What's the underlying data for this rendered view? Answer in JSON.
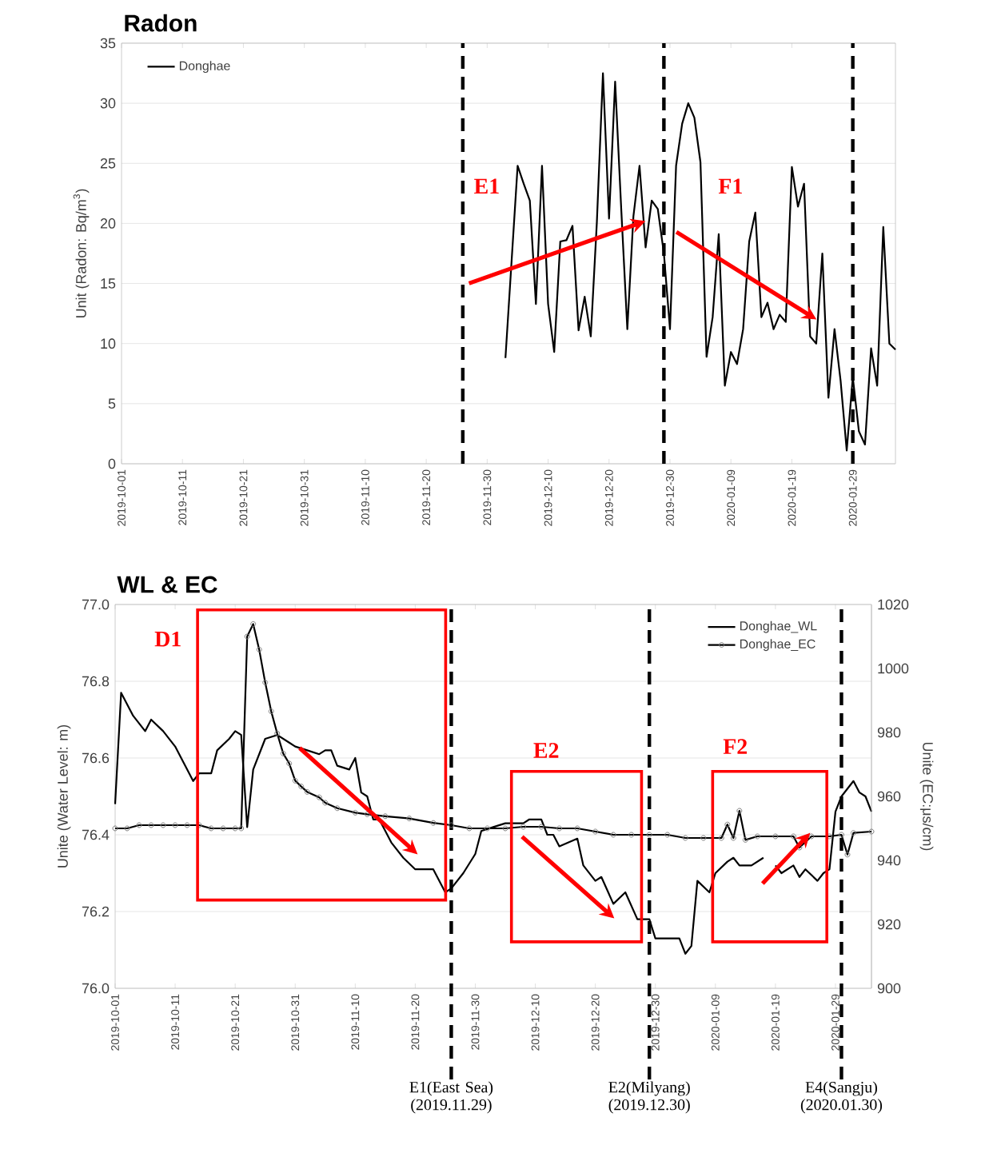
{
  "chart_data": [
    {
      "type": "line",
      "title": "Radon",
      "ylabel": "Unit (Radon: Bq/m$^{3}$)",
      "xlim": [
        "2019-10-01",
        "2020-02-05"
      ],
      "xticks": [
        "2019-10-01",
        "2019-10-11",
        "2019-10-21",
        "2019-10-31",
        "2019-11-10",
        "2019-11-20",
        "2019-11-30",
        "2019-12-10",
        "2019-12-20",
        "2019-12-30",
        "2020-01-09",
        "2020-01-19",
        "2020-01-29"
      ],
      "ylim": [
        0,
        35
      ],
      "yticks": [
        0,
        5,
        10,
        15,
        20,
        25,
        30,
        35
      ],
      "grid": "y",
      "legend": "top left",
      "series": [
        {
          "name": "Donghae",
          "color": "#000000",
          "x": [
            "2019-12-03",
            "2019-12-05",
            "2019-12-06",
            "2019-12-07",
            "2019-12-08",
            "2019-12-09",
            "2019-12-10",
            "2019-12-11",
            "2019-12-12",
            "2019-12-13",
            "2019-12-14",
            "2019-12-15",
            "2019-12-16",
            "2019-12-17",
            "2019-12-18",
            "2019-12-19",
            "2019-12-20",
            "2019-12-21",
            "2019-12-22",
            "2019-12-23",
            "2019-12-24",
            "2019-12-25",
            "2019-12-26",
            "2019-12-27",
            "2019-12-28",
            "2019-12-29",
            "2019-12-30",
            "2019-12-31",
            "2020-01-01",
            "2020-01-02",
            "2020-01-03",
            "2020-01-04",
            "2020-01-05",
            "2020-01-06",
            "2020-01-07",
            "2020-01-08",
            "2020-01-09",
            "2020-01-10",
            "2020-01-11",
            "2020-01-12",
            "2020-01-13",
            "2020-01-14",
            "2020-01-15",
            "2020-01-16",
            "2020-01-17",
            "2020-01-18",
            "2020-01-19",
            "2020-01-20",
            "2020-01-21",
            "2020-01-22",
            "2020-01-23",
            "2020-01-24",
            "2020-01-25",
            "2020-01-26",
            "2020-01-27",
            "2020-01-28",
            "2020-01-29",
            "2020-01-30",
            "2020-01-31",
            "2020-02-01",
            "2020-02-02",
            "2020-02-03",
            "2020-02-04",
            "2020-02-05"
          ],
          "values": [
            8.8,
            24.8,
            23.3,
            21.9,
            13.3,
            24.8,
            13.3,
            9.3,
            18.5,
            18.6,
            19.8,
            11.1,
            13.9,
            10.6,
            20.1,
            32.5,
            20.4,
            31.8,
            21.2,
            11.2,
            20.6,
            24.8,
            18.0,
            21.9,
            21.2,
            17.5,
            11.2,
            24.8,
            28.3,
            30.0,
            28.8,
            25.1,
            8.9,
            12.2,
            19.1,
            6.5,
            9.3,
            8.3,
            11.2,
            18.5,
            20.9,
            12.2,
            13.4,
            11.2,
            12.4,
            11.8,
            24.7,
            21.4,
            23.3,
            10.6,
            10.0,
            17.5,
            5.5,
            11.2,
            6.9,
            1.1,
            7.2,
            2.7,
            1.6,
            9.6,
            6.5,
            19.7,
            10.0,
            9.5
          ]
        }
      ],
      "ref_lines": [
        {
          "axis": "x",
          "value": "2019-11-26",
          "color": "#000000",
          "line_style": "dashed"
        },
        {
          "axis": "x",
          "value": "2019-12-29",
          "color": "#000000",
          "line_style": "dashed"
        },
        {
          "axis": "x",
          "value": "2020-01-29",
          "color": "#000000",
          "line_style": "dashed"
        }
      ],
      "annotations": [
        "E1",
        "F1"
      ]
    },
    {
      "type": "line",
      "title": "WL & EC",
      "ylabel": "Unite (Water Level: m)",
      "y2label": "Unite (EC:μs/cm)",
      "xlim": [
        "2019-10-01",
        "2020-02-04"
      ],
      "xticks": [
        "2019-10-01",
        "2019-10-11",
        "2019-10-21",
        "2019-10-31",
        "2019-11-10",
        "2019-11-20",
        "2019-11-30",
        "2019-12-10",
        "2019-12-20",
        "2019-12-30",
        "2020-01-09",
        "2020-01-19",
        "2020-01-29"
      ],
      "ylim": [
        76.0,
        77.0
      ],
      "yticks": [
        {
          "value": 76.0,
          "label": "76.0"
        },
        76.2,
        76.4,
        76.6,
        76.8,
        {
          "value": 77.0,
          "label": "77.0"
        }
      ],
      "y2lim": [
        900,
        1020
      ],
      "y2ticks": [
        900,
        920,
        940,
        960,
        980,
        1000,
        1020
      ],
      "grid": "y",
      "legend": "top right",
      "series": [
        {
          "name": "Donghae_WL",
          "color": "#000000",
          "x": [
            "2019-10-01",
            "2019-10-02",
            "2019-10-04",
            "2019-10-06",
            "2019-10-07",
            "2019-10-09",
            "2019-10-10",
            "2019-10-11",
            "2019-10-14",
            "2019-10-15",
            "2019-10-17",
            "2019-10-18",
            "2019-10-20",
            "2019-10-21",
            "2019-10-22",
            "2019-10-23",
            "2019-10-24",
            "2019-10-26",
            "2019-10-28",
            "2019-10-30",
            "2019-10-31",
            "2019-11-02",
            "2019-11-04",
            "2019-11-05",
            "2019-11-06",
            "2019-11-07",
            "2019-11-09",
            "2019-11-10",
            "2019-11-11",
            "2019-11-12",
            "2019-11-13",
            "2019-11-14",
            "2019-11-16",
            "2019-11-18",
            "2019-11-20",
            "2019-11-23",
            "2019-11-25",
            "2019-11-26",
            "2019-11-28",
            "2019-11-30",
            "2019-12-01",
            "2019-12-03",
            "2019-12-05",
            "2019-12-08",
            "2019-12-09",
            "2019-12-11",
            "2019-12-12",
            "2019-12-13",
            "2019-12-14",
            "2019-12-17",
            "2019-12-18",
            "2019-12-20",
            "2019-12-21",
            "2019-12-23",
            "2019-12-25",
            "2019-12-27",
            "2019-12-29",
            "2019-12-30",
            "2020-01-03",
            "2020-01-04",
            "2020-01-05",
            "2020-01-06",
            "2020-01-08",
            "2020-01-09",
            "2020-01-11",
            "2020-01-12",
            "2020-01-13",
            "2020-01-15",
            "2020-01-17",
            "2020-01-18",
            "2020-01-19",
            "2020-01-20",
            "2020-01-22",
            "2020-01-23",
            "2020-01-24",
            "2020-01-26",
            "2020-01-27",
            "2020-01-28",
            "2020-01-29",
            "2020-01-30",
            "2020-02-01",
            "2020-02-02",
            "2020-02-03",
            "2020-02-04"
          ],
          "values": [
            76.48,
            76.77,
            76.71,
            76.67,
            76.7,
            76.67,
            76.65,
            76.63,
            76.54,
            76.56,
            76.56,
            76.62,
            76.65,
            76.67,
            76.66,
            76.42,
            76.57,
            76.65,
            76.66,
            76.64,
            76.63,
            76.62,
            76.61,
            76.62,
            76.62,
            76.58,
            76.57,
            76.6,
            76.51,
            76.5,
            76.44,
            76.44,
            76.38,
            76.34,
            76.31,
            76.31,
            76.25,
            76.26,
            76.3,
            76.35,
            76.41,
            76.42,
            76.43,
            76.43,
            76.44,
            76.44,
            76.4,
            76.4,
            76.37,
            76.39,
            76.32,
            76.28,
            76.29,
            76.22,
            76.25,
            76.18,
            76.18,
            76.13,
            76.13,
            76.09,
            76.11,
            76.28,
            76.25,
            76.3,
            76.33,
            76.34,
            76.32,
            76.32,
            76.34,
            null,
            76.32,
            76.3,
            76.32,
            76.29,
            76.31,
            76.28,
            76.3,
            76.31,
            76.46,
            76.5,
            76.54,
            76.51,
            76.5,
            76.46
          ]
        },
        {
          "name": "Donghae_EC",
          "color": "#000000",
          "axis": "y2",
          "marker": "circle",
          "x": [
            "2019-10-01",
            "2019-10-03",
            "2019-10-05",
            "2019-10-07",
            "2019-10-09",
            "2019-10-11",
            "2019-10-13",
            "2019-10-15",
            "2019-10-17",
            "2019-10-19",
            "2019-10-21",
            "2019-10-22",
            "2019-10-23",
            "2019-10-24",
            "2019-10-25",
            "2019-10-26",
            "2019-10-27",
            "2019-10-28",
            "2019-10-29",
            "2019-10-30",
            "2019-10-31",
            "2019-11-01",
            "2019-11-02",
            "2019-11-04",
            "2019-11-05",
            "2019-11-07",
            "2019-11-10",
            "2019-11-12",
            "2019-11-15",
            "2019-11-19",
            "2019-11-23",
            "2019-11-26",
            "2019-11-29",
            "2019-12-02",
            "2019-12-05",
            "2019-12-08",
            "2019-12-11",
            "2019-12-14",
            "2019-12-17",
            "2019-12-20",
            "2019-12-23",
            "2019-12-26",
            "2019-12-29",
            "2020-01-01",
            "2020-01-04",
            "2020-01-07",
            "2020-01-10",
            "2020-01-11",
            "2020-01-12",
            "2020-01-13",
            "2020-01-14",
            "2020-01-16",
            "2020-01-19",
            "2020-01-22",
            "2020-01-23",
            "2020-01-25",
            "2020-01-28",
            "2020-01-30",
            "2020-01-31",
            "2020-02-01",
            "2020-02-04"
          ],
          "values": [
            950.0,
            950.0,
            951.0,
            951.0,
            951.0,
            951.0,
            951.0,
            951.0,
            950.0,
            950.0,
            950.0,
            950.0,
            1010.0,
            1013.9,
            1005.9,
            995.6,
            986.6,
            979.7,
            973.4,
            970.3,
            964.9,
            963.1,
            961.4,
            959.7,
            958.0,
            956.3,
            954.9,
            954.4,
            953.8,
            953.1,
            951.7,
            951.0,
            950.0,
            950.0,
            950.0,
            950.5,
            950.5,
            950.0,
            950.0,
            949.0,
            948.0,
            948.0,
            948.0,
            948.0,
            947.0,
            947.0,
            947.0,
            951.2,
            947.0,
            955.5,
            946.4,
            947.5,
            947.5,
            947.5,
            944.0,
            947.5,
            947.5,
            948.0,
            941.8,
            948.6,
            949.0
          ]
        }
      ],
      "ref_lines": [
        {
          "axis": "x",
          "value": "2019-11-26",
          "color": "#000000",
          "line_style": "dashed",
          "label": "E1(East Sea) (2019.11.29)"
        },
        {
          "axis": "x",
          "value": "2019-12-29",
          "color": "#000000",
          "line_style": "dashed",
          "label": "E2(Milyang) (2019.12.30)"
        },
        {
          "axis": "x",
          "value": "2020-01-30",
          "color": "#000000",
          "line_style": "dashed",
          "label": "E4(Sangju) (2020.01.30)"
        }
      ],
      "annotations": [
        "D1",
        "E2",
        "F2"
      ]
    }
  ]
}
